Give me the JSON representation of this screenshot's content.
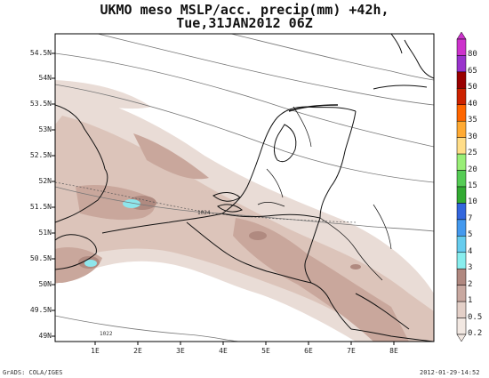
{
  "title_line1": "UKMO meso MSLP/acc. precip(mm) +42h,",
  "title_line2": "Tue,31JAN2012 06Z",
  "lat_labels": [
    "54.5N",
    "54N",
    "53.5N",
    "53N",
    "52.5N",
    "52N",
    "51.5N",
    "51N",
    "50.5N",
    "50N",
    "49.5N",
    "49N"
  ],
  "lon_labels": [
    "1E",
    "2E",
    "3E",
    "4E",
    "5E",
    "6E",
    "7E",
    "8E"
  ],
  "colorbar": {
    "labels": [
      "80",
      "65",
      "50",
      "40",
      "35",
      "30",
      "25",
      "20",
      "15",
      "10",
      "7",
      "5",
      "4",
      "3",
      "2",
      "1",
      "0.5",
      "0.2"
    ],
    "colors": [
      "#cc33cc",
      "#9933cc",
      "#990000",
      "#cc2200",
      "#ff6600",
      "#ffaa33",
      "#ffdd88",
      "#99ee77",
      "#55cc55",
      "#33aa33",
      "#3366dd",
      "#4499ee",
      "#66ccee",
      "#88eeee",
      "#b08880",
      "#c8a8a0",
      "#e4d0c8",
      "#f2e8e2"
    ]
  },
  "isobars": {
    "label_1024": "1024",
    "label_1022": "1022"
  },
  "footer_left": "GrADS: COLA/IGES",
  "footer_right": "2012-01-29-14:52"
}
